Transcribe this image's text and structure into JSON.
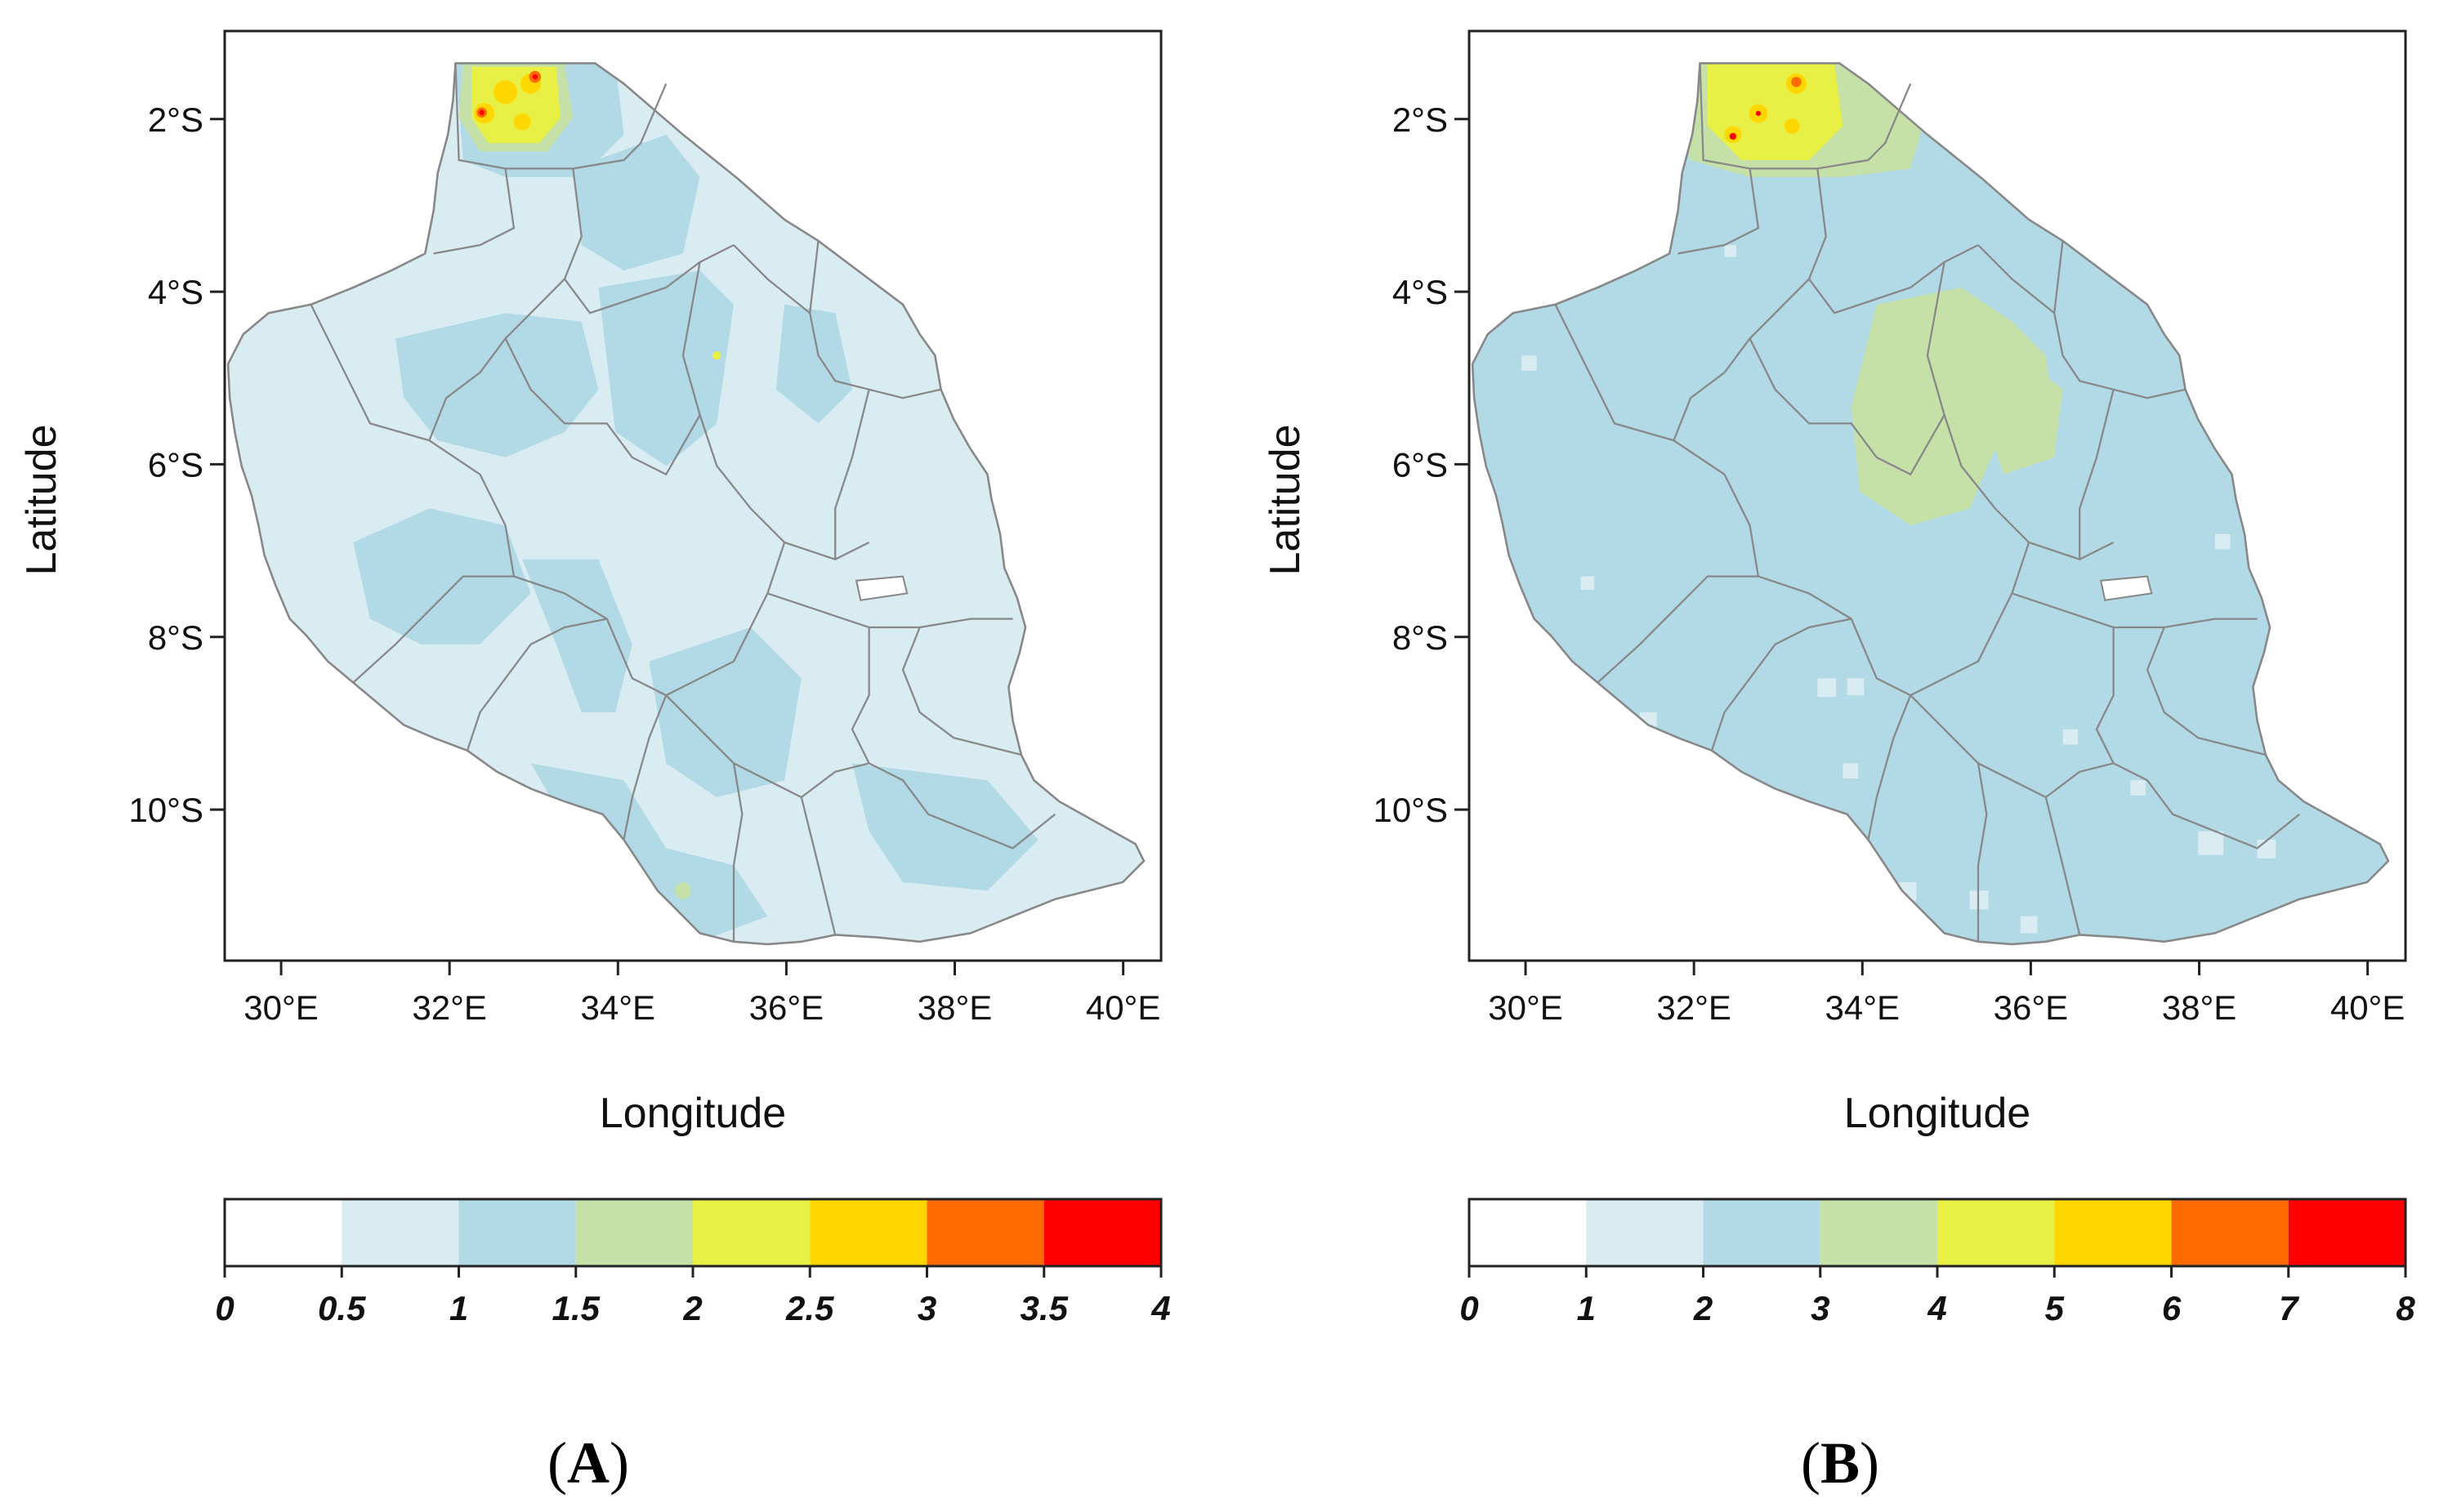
{
  "panels": [
    {
      "id": "A",
      "panel_label": "A",
      "panel_label_open": "(",
      "panel_label_close": ")",
      "xlabel": "Longitude",
      "ylabel": "Latitude",
      "lon_ticks": [
        {
          "value": 30,
          "label": "30°E"
        },
        {
          "value": 32,
          "label": "32°E"
        },
        {
          "value": 34,
          "label": "34°E"
        },
        {
          "value": 36,
          "label": "36°E"
        },
        {
          "value": 38,
          "label": "38°E"
        },
        {
          "value": 40,
          "label": "40°E"
        }
      ],
      "lat_ticks": [
        {
          "value": -2,
          "label": "2°S"
        },
        {
          "value": -4,
          "label": "4°S"
        },
        {
          "value": -6,
          "label": "6°S"
        },
        {
          "value": -8,
          "label": "8°S"
        },
        {
          "value": -10,
          "label": "10°S"
        }
      ],
      "lon_range": [
        29.33,
        40.45
      ],
      "lat_range": [
        -11.75,
        -0.98
      ],
      "legend": {
        "breaks": [
          "0",
          "0.5",
          "1",
          "1.5",
          "2",
          "2.5",
          "3",
          "3.5",
          "4"
        ],
        "colors": [
          "#ffffff",
          "#d9ecf2",
          "#b1d9e6",
          "#c5e1a8",
          "#e8f046",
          "#ffd700",
          "#ff6a00",
          "#ff0000"
        ]
      },
      "base_fill": "#d9ecf2",
      "patch_fill": "#b1d9e6",
      "hotspot_fills": [
        "#c5e1a8",
        "#e8f046",
        "#ffd700",
        "#ff6a00",
        "#ff0000"
      ]
    },
    {
      "id": "B",
      "panel_label": "B",
      "panel_label_open": "(",
      "panel_label_close": ")",
      "xlabel": "Longitude",
      "ylabel": "Latitude",
      "lon_ticks": [
        {
          "value": 30,
          "label": "30°E"
        },
        {
          "value": 32,
          "label": "32°E"
        },
        {
          "value": 34,
          "label": "34°E"
        },
        {
          "value": 36,
          "label": "36°E"
        },
        {
          "value": 38,
          "label": "38°E"
        },
        {
          "value": 40,
          "label": "40°E"
        }
      ],
      "lat_ticks": [
        {
          "value": -2,
          "label": "2°S"
        },
        {
          "value": -4,
          "label": "4°S"
        },
        {
          "value": -6,
          "label": "6°S"
        },
        {
          "value": -8,
          "label": "8°S"
        },
        {
          "value": -10,
          "label": "10°S"
        }
      ],
      "lon_range": [
        29.33,
        40.45
      ],
      "lat_range": [
        -11.75,
        -0.98
      ],
      "legend": {
        "breaks": [
          "0",
          "1",
          "2",
          "3",
          "4",
          "5",
          "6",
          "7",
          "8"
        ],
        "colors": [
          "#ffffff",
          "#d9ecf2",
          "#b1d9e6",
          "#c5e1a8",
          "#e8f046",
          "#ffd700",
          "#ff6a00",
          "#ff0000"
        ]
      },
      "base_fill": "#b1d9e6",
      "patch_fill": "#c5e1a8",
      "hotspot_fills": [
        "#c5e1a8",
        "#e8f046",
        "#ffd700",
        "#ff6a00",
        "#ff0000"
      ]
    }
  ],
  "colors": {
    "border": "#888888",
    "frame": "#222222",
    "lake": "#ffffff"
  }
}
